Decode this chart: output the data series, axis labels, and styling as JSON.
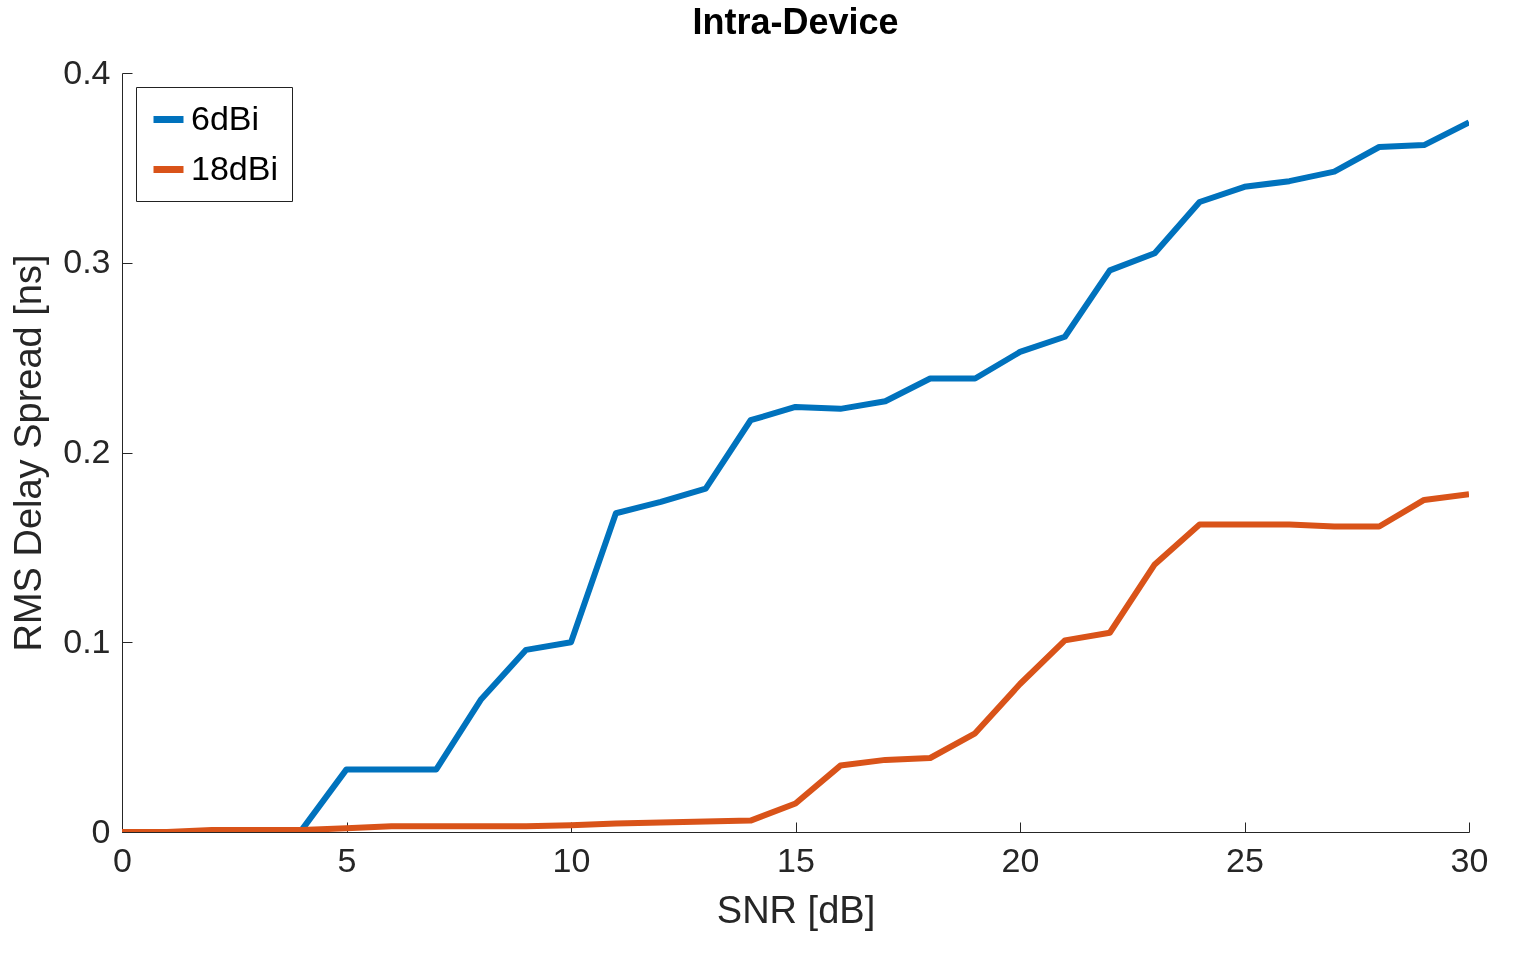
{
  "chart_data": {
    "type": "line",
    "title": "Intra-Device",
    "xlabel": "SNR [dB]",
    "ylabel": "RMS Delay Spread [ns]",
    "x": [
      0,
      1,
      2,
      3,
      4,
      5,
      6,
      7,
      8,
      9,
      10,
      11,
      12,
      13,
      14,
      15,
      16,
      17,
      18,
      19,
      20,
      21,
      22,
      23,
      24,
      25,
      26,
      27,
      28,
      29,
      30
    ],
    "series": [
      {
        "name": "6dBi",
        "color": "#0072bd",
        "values": [
          null,
          null,
          null,
          null,
          0.001,
          0.033,
          0.033,
          0.033,
          0.07,
          0.096,
          0.1,
          0.168,
          0.174,
          0.181,
          0.217,
          0.224,
          0.223,
          0.227,
          0.239,
          0.239,
          0.253,
          0.261,
          0.296,
          0.305,
          0.332,
          0.34,
          0.343,
          0.348,
          0.361,
          0.362,
          0.374
        ]
      },
      {
        "name": "18dBi",
        "color": "#d95319",
        "values": [
          0,
          0,
          0.001,
          0.001,
          0.001,
          0.002,
          0.003,
          0.003,
          0.003,
          0.003,
          0.0035,
          0.0045,
          0.005,
          0.0055,
          0.006,
          0.015,
          0.035,
          0.038,
          0.039,
          0.052,
          0.078,
          0.101,
          0.105,
          0.141,
          0.162,
          0.162,
          0.162,
          0.161,
          0.161,
          0.175,
          0.178
        ]
      }
    ],
    "xlim": [
      0,
      30
    ],
    "xticks": [
      0,
      5,
      10,
      15,
      20,
      25,
      30
    ],
    "ylim": [
      0,
      0.4
    ],
    "yticks": [
      0,
      0.1,
      0.2,
      0.3,
      0.4
    ],
    "grid": false,
    "legend": "top left",
    "marker": "none",
    "line_style": "solid"
  }
}
